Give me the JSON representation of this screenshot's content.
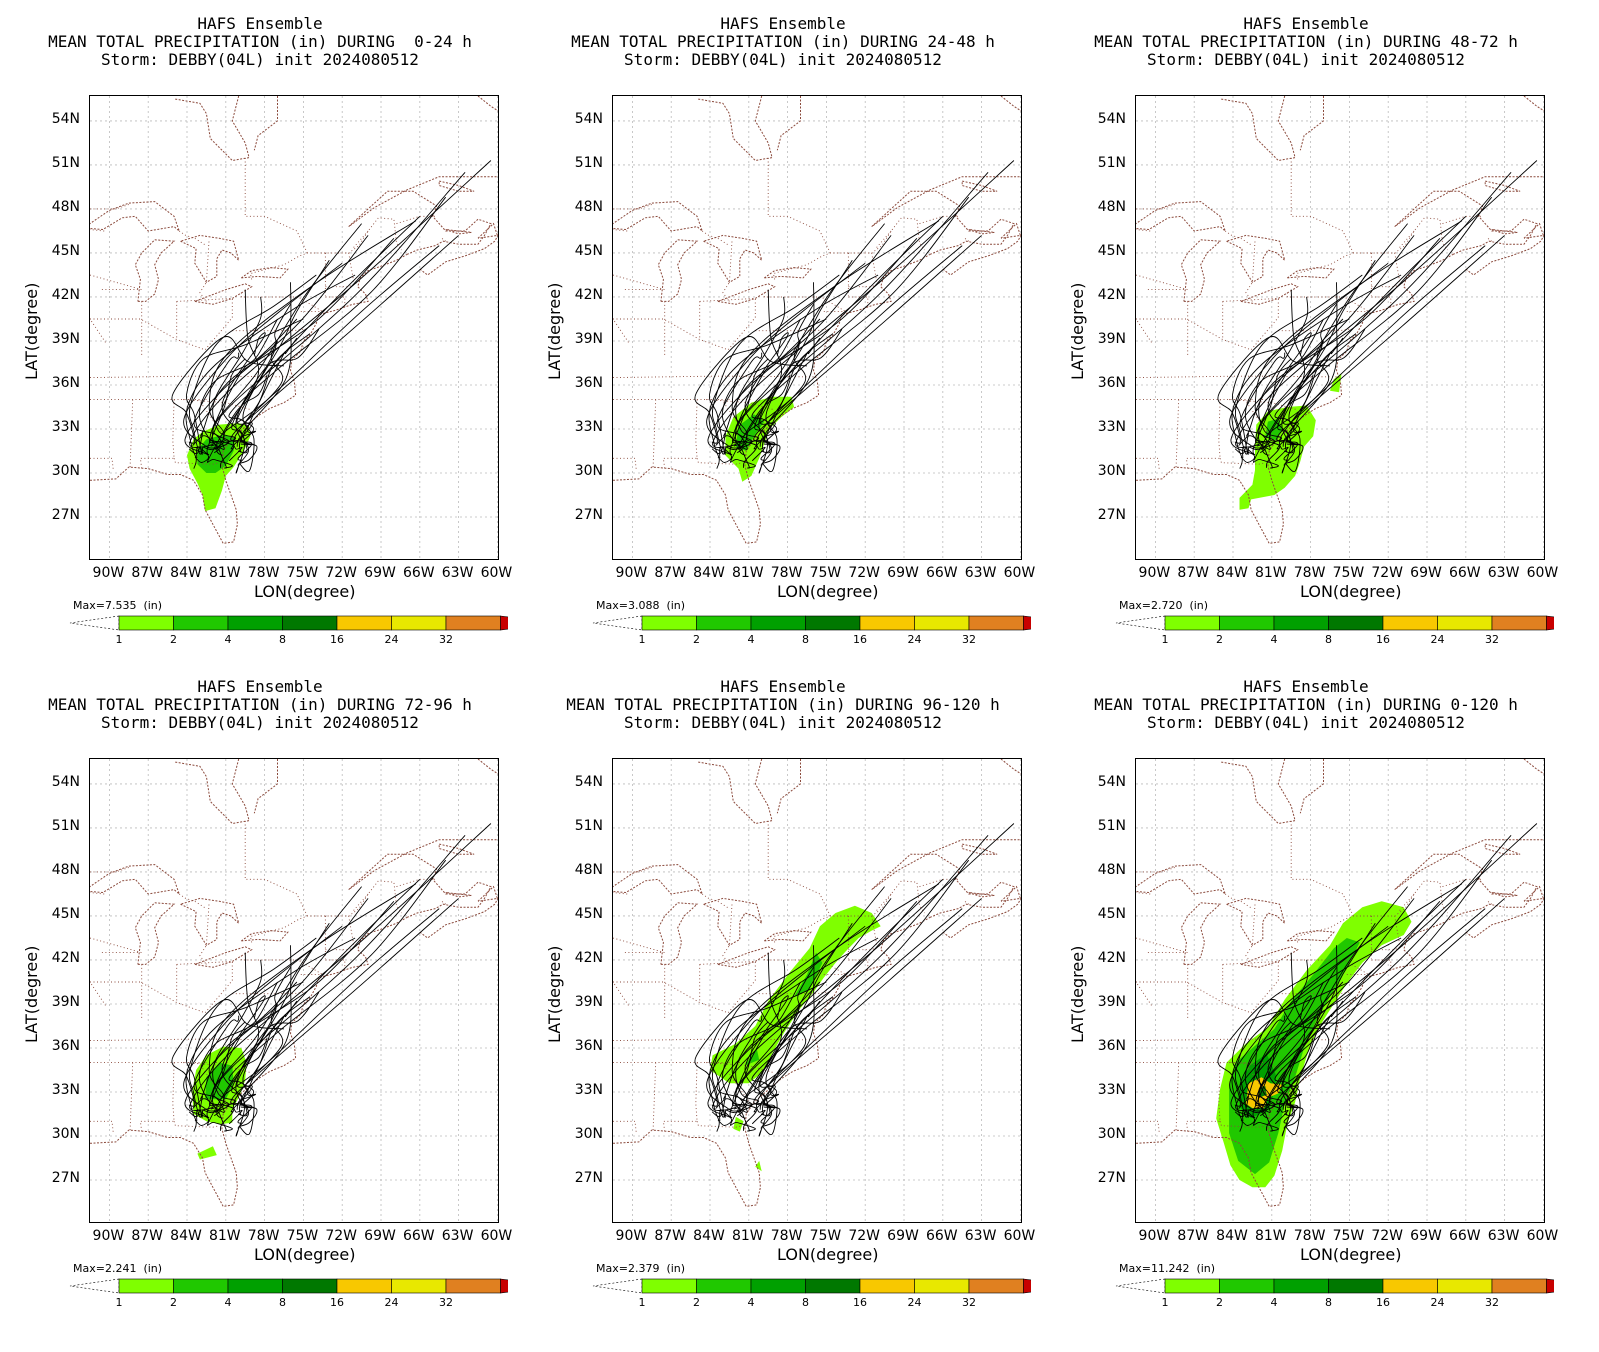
{
  "panels": [
    {
      "title1": "HAFS Ensemble",
      "title2": "MEAN TOTAL PRECIPITATION (in) DURING  0-24 h",
      "title3": "Storm: DEBBY(04L) init 2024080512",
      "max_label": "Max=7.535  (in)",
      "precip": "p0"
    },
    {
      "title1": "HAFS Ensemble",
      "title2": "MEAN TOTAL PRECIPITATION (in) DURING 24-48 h",
      "title3": "Storm: DEBBY(04L) init 2024080512",
      "max_label": "Max=3.088  (in)",
      "precip": "p1"
    },
    {
      "title1": "HAFS Ensemble",
      "title2": "MEAN TOTAL PRECIPITATION (in) DURING 48-72 h",
      "title3": "Storm: DEBBY(04L) init 2024080512",
      "max_label": "Max=2.720  (in)",
      "precip": "p2"
    },
    {
      "title1": "HAFS Ensemble",
      "title2": "MEAN TOTAL PRECIPITATION (in) DURING 72-96 h",
      "title3": "Storm: DEBBY(04L) init 2024080512",
      "max_label": "Max=2.241  (in)",
      "precip": "p3"
    },
    {
      "title1": "HAFS Ensemble",
      "title2": "MEAN TOTAL PRECIPITATION (in) DURING 96-120 h",
      "title3": "Storm: DEBBY(04L) init 2024080512",
      "max_label": "Max=2.379  (in)",
      "precip": "p4"
    },
    {
      "title1": "HAFS Ensemble",
      "title2": "MEAN TOTAL PRECIPITATION (in) DURING 0-120 h",
      "title3": "Storm: DEBBY(04L) init 2024080512",
      "max_label": "Max=11.242  (in)",
      "precip": "p5"
    }
  ],
  "axes": {
    "ylabel": "LAT(degree)",
    "xlabel": "LON(degree)",
    "lat_ticks": [
      "54N",
      "51N",
      "48N",
      "45N",
      "42N",
      "39N",
      "36N",
      "33N",
      "30N",
      "27N"
    ],
    "lon_ticks": [
      "90W",
      "87W",
      "84W",
      "81W",
      "78W",
      "75W",
      "72W",
      "69W",
      "66W",
      "63W",
      "60W"
    ]
  },
  "colorbar": {
    "levels": [
      "1",
      "2",
      "4",
      "8",
      "16",
      "24",
      "32"
    ],
    "colors": [
      "#7fff00",
      "#20c800",
      "#00a000",
      "#007800",
      "#f8c800",
      "#e8e800",
      "#e08020",
      "#c80000"
    ]
  }
}
